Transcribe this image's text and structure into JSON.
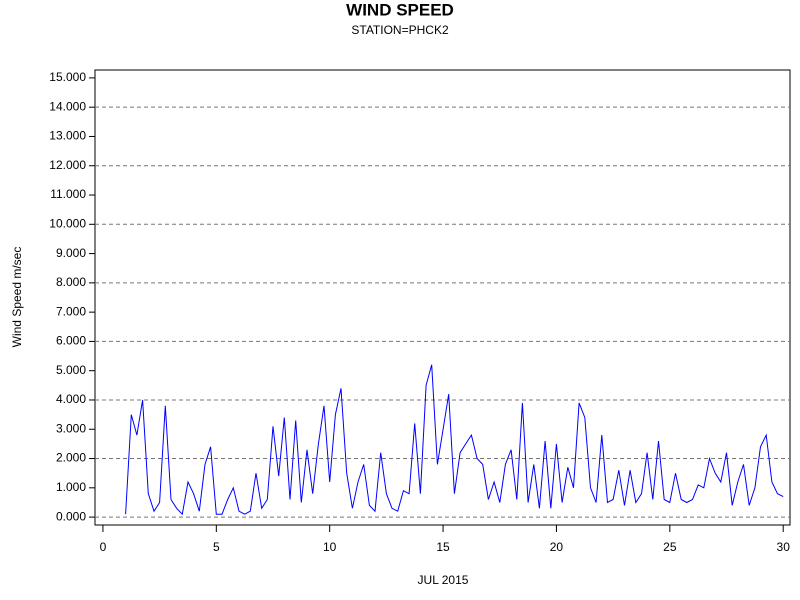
{
  "chart_data": {
    "type": "line",
    "title": "WIND SPEED",
    "subtitle": "STATION=PHCK2",
    "x_label": "JUL 2015",
    "y_label": "Wind Speed m/sec",
    "x": [
      1,
      1.25,
      1.5,
      1.75,
      2,
      2.25,
      2.5,
      2.75,
      3,
      3.25,
      3.5,
      3.75,
      4,
      4.25,
      4.5,
      4.75,
      5,
      5.25,
      5.5,
      5.75,
      6,
      6.25,
      6.5,
      6.75,
      7,
      7.25,
      7.5,
      7.75,
      8,
      8.25,
      8.5,
      8.75,
      9,
      9.25,
      9.5,
      9.75,
      10,
      10.25,
      10.5,
      10.75,
      11,
      11.25,
      11.5,
      11.75,
      12,
      12.25,
      12.5,
      12.75,
      13,
      13.25,
      13.5,
      13.75,
      14,
      14.25,
      14.5,
      14.75,
      15,
      15.25,
      15.5,
      15.75,
      16,
      16.25,
      16.5,
      16.75,
      17,
      17.25,
      17.5,
      17.75,
      18,
      18.25,
      18.5,
      18.75,
      19,
      19.25,
      19.5,
      19.75,
      20,
      20.25,
      20.5,
      20.75,
      21,
      21.25,
      21.5,
      21.75,
      22,
      22.25,
      22.5,
      22.75,
      23,
      23.25,
      23.5,
      23.75,
      24,
      24.25,
      24.5,
      24.75,
      25,
      25.25,
      25.5,
      25.75,
      26,
      26.25,
      26.5,
      26.75,
      27,
      27.25,
      27.5,
      27.75,
      28,
      28.25,
      28.5,
      28.75,
      29,
      29.25,
      29.5,
      29.75,
      30
    ],
    "series": [
      {
        "name": "Wind Speed",
        "color": "#0000ff",
        "values": [
          0.1,
          3.5,
          2.8,
          4.0,
          0.8,
          0.2,
          0.5,
          3.8,
          0.6,
          0.3,
          0.1,
          1.2,
          0.8,
          0.2,
          1.8,
          2.4,
          0.1,
          0.1,
          0.6,
          1.0,
          0.2,
          0.1,
          0.2,
          1.5,
          0.3,
          0.6,
          3.1,
          1.4,
          3.4,
          0.6,
          3.3,
          0.5,
          2.3,
          0.8,
          2.5,
          3.8,
          1.2,
          3.5,
          4.4,
          1.5,
          0.3,
          1.2,
          1.8,
          0.4,
          0.2,
          2.2,
          0.8,
          0.3,
          0.2,
          0.9,
          0.8,
          3.2,
          0.8,
          4.5,
          5.2,
          1.8,
          3.0,
          4.2,
          0.8,
          2.2,
          2.5,
          2.8,
          2.0,
          1.8,
          0.6,
          1.2,
          0.5,
          1.8,
          2.3,
          0.6,
          3.9,
          0.5,
          1.8,
          0.3,
          2.6,
          0.3,
          2.5,
          0.5,
          1.7,
          1.0,
          3.9,
          3.4,
          1.0,
          0.5,
          2.8,
          0.5,
          0.6,
          1.6,
          0.4,
          1.6,
          0.5,
          0.8,
          2.2,
          0.6,
          2.6,
          0.6,
          0.5,
          1.5,
          0.6,
          0.5,
          0.6,
          1.1,
          1.0,
          2.0,
          1.5,
          1.2,
          2.2,
          0.4,
          1.2,
          1.8,
          0.4,
          1.0,
          2.4,
          2.8,
          1.2,
          0.8,
          0.7
        ]
      }
    ],
    "xlim": [
      -0.35,
      30.3
    ],
    "xticks": [
      0,
      5,
      10,
      15,
      20,
      25,
      30
    ],
    "ylim": [
      -0.27,
      15.27
    ],
    "yticks": [
      {
        "value": 0,
        "label": "0.000"
      },
      {
        "value": 1,
        "label": "1.000"
      },
      {
        "value": 2,
        "label": "2.000"
      },
      {
        "value": 3,
        "label": "3.000"
      },
      {
        "value": 4,
        "label": "4.000"
      },
      {
        "value": 5,
        "label": "5.000"
      },
      {
        "value": 6,
        "label": "6.000"
      },
      {
        "value": 7,
        "label": "7.000"
      },
      {
        "value": 8,
        "label": "8.000"
      },
      {
        "value": 9,
        "label": "9.000"
      },
      {
        "value": 10,
        "label": "10.000"
      },
      {
        "value": 11,
        "label": "11.000"
      },
      {
        "value": 12,
        "label": "12.000"
      },
      {
        "value": 13,
        "label": "13.000"
      },
      {
        "value": 14,
        "label": "14.000"
      },
      {
        "value": 15,
        "label": "15.000"
      }
    ],
    "grid": true
  }
}
